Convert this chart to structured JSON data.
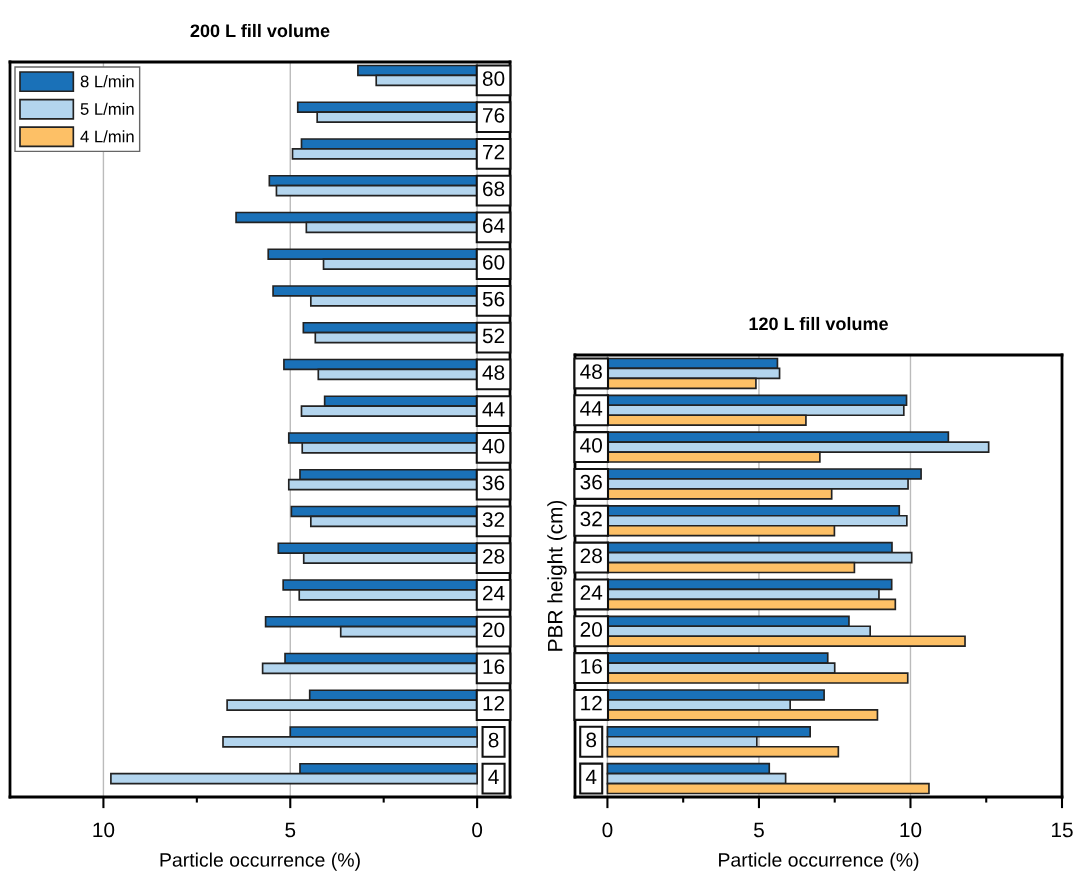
{
  "chart_data": [
    {
      "type": "bar",
      "orientation": "horizontal",
      "title": "200 L fill volume",
      "xlabel": "Particle occurrence (%)",
      "categories": [
        "80",
        "76",
        "72",
        "68",
        "64",
        "60",
        "56",
        "52",
        "48",
        "44",
        "40",
        "36",
        "32",
        "28",
        "24",
        "20",
        "16",
        "12",
        "8",
        "4"
      ],
      "series": [
        {
          "name": "8 L/min",
          "color": "#1a71b8",
          "values": [
            3.19,
            4.8,
            4.7,
            5.56,
            6.45,
            5.59,
            5.46,
            4.65,
            5.17,
            4.08,
            5.04,
            4.74,
            4.97,
            5.32,
            5.19,
            5.66,
            5.14,
            4.48,
            5.0,
            4.74
          ]
        },
        {
          "name": "5 L/min",
          "color": "#b3d5ee",
          "values": [
            2.7,
            4.28,
            4.94,
            5.37,
            4.57,
            4.11,
            4.45,
            4.33,
            4.25,
            4.7,
            4.68,
            5.04,
            4.45,
            4.64,
            4.76,
            3.65,
            5.74,
            6.69,
            6.8,
            9.8
          ]
        },
        {
          "name": "4 L/min",
          "color": "#fdc066",
          "values": [
            null,
            null,
            null,
            null,
            null,
            null,
            null,
            null,
            null,
            null,
            null,
            null,
            null,
            null,
            null,
            null,
            null,
            null,
            null,
            null
          ]
        }
      ],
      "xlim": [
        12.5,
        -0.88
      ],
      "xticks": [
        10,
        5,
        0
      ],
      "grid": "x",
      "legend": "top left"
    },
    {
      "type": "bar",
      "orientation": "horizontal",
      "title": "120 L fill volume",
      "xlabel": "Particle occurrence (%)",
      "ylabel": "PBR height (cm)",
      "categories": [
        "48",
        "44",
        "40",
        "36",
        "32",
        "28",
        "24",
        "20",
        "16",
        "12",
        "8",
        "4"
      ],
      "series": [
        {
          "color": "#1a71b8",
          "values": [
            5.61,
            9.87,
            11.25,
            10.35,
            9.63,
            9.39,
            9.38,
            7.97,
            7.27,
            7.15,
            6.69,
            5.34
          ]
        },
        {
          "color": "#b3d5ee",
          "values": [
            5.68,
            9.78,
            12.58,
            9.92,
            9.88,
            10.04,
            8.96,
            8.67,
            7.5,
            6.03,
            4.93,
            5.88
          ]
        },
        {
          "color": "#fdc066",
          "values": [
            4.9,
            6.55,
            7.01,
            7.4,
            7.49,
            8.15,
            9.5,
            11.8,
            9.91,
            8.91,
            7.62,
            10.61
          ]
        }
      ],
      "xlim": [
        -1.07,
        15
      ],
      "xticks": [
        0,
        5,
        10,
        15
      ],
      "grid": "x"
    }
  ]
}
